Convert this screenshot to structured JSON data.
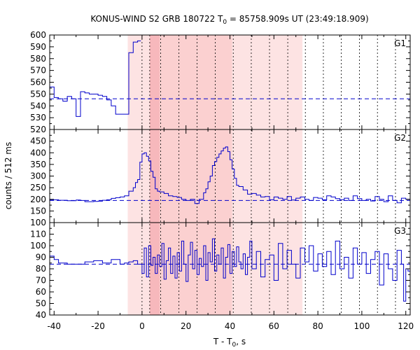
{
  "chart_data": {
    "type": "line",
    "title": "KONUS-WIND S2 GRB 180722 T",
    "title_sub": "0",
    "title_rest": " = 85758.909s UT (23:49:18.909)",
    "xlabel": "T - T",
    "xlabel_sub": "0",
    "xlabel_rest": ", s",
    "ylabel": "counts / 512 ms",
    "xlim": [
      -42,
      122
    ],
    "x_ticks": [
      "-40",
      "-20",
      "0",
      "20",
      "40",
      "60",
      "80",
      "100",
      "120"
    ],
    "line_color": "#0000cc",
    "shade_colors": {
      "light": "#fde3e3",
      "medium": "#fbd0d0",
      "dark": "#f7b8bc"
    },
    "shaded_regions": [
      {
        "x0": -6.5,
        "x1": 3.5,
        "level": "light"
      },
      {
        "x0": 3.5,
        "x1": 8.0,
        "level": "dark"
      },
      {
        "x0": 8.0,
        "x1": 41.0,
        "level": "medium"
      },
      {
        "x0": 41.0,
        "x1": 73.0,
        "level": "light"
      }
    ],
    "vlines": [
      0,
      3.5,
      8.5,
      16.8,
      25.0,
      33.3,
      41.5,
      49.7,
      58.0,
      66.3,
      74.3,
      82.5,
      90.6,
      98.9,
      107.1,
      115.3
    ],
    "panels": [
      {
        "name": "G1",
        "ylim": [
          520,
          600
        ],
        "y_ticks": [
          "520",
          "530",
          "540",
          "550",
          "560",
          "570",
          "580",
          "590",
          "600"
        ],
        "background": 546,
        "points": [
          [
            -42,
            556
          ],
          [
            -40,
            547
          ],
          [
            -38,
            546
          ],
          [
            -36,
            544
          ],
          [
            -34,
            548
          ],
          [
            -32,
            546
          ],
          [
            -30,
            531
          ],
          [
            -28,
            552
          ],
          [
            -26,
            551
          ],
          [
            -24,
            550
          ],
          [
            -22,
            550
          ],
          [
            -20,
            549
          ],
          [
            -18,
            548
          ],
          [
            -16,
            545
          ],
          [
            -14,
            540
          ],
          [
            -12,
            533
          ],
          [
            -10,
            533
          ],
          [
            -8,
            533
          ],
          [
            -6,
            585
          ],
          [
            -4,
            594
          ],
          [
            -2,
            595
          ],
          [
            -0.5,
            595
          ]
        ]
      },
      {
        "name": "G2",
        "ylim": [
          100,
          500
        ],
        "y_ticks": [
          "100",
          "150",
          "200",
          "250",
          "300",
          "350",
          "400",
          "450",
          "500"
        ],
        "background": 195,
        "points": [
          [
            -42,
            198
          ],
          [
            -38,
            196
          ],
          [
            -34,
            194
          ],
          [
            -30,
            197
          ],
          [
            -28,
            195
          ],
          [
            -26,
            190
          ],
          [
            -22,
            191
          ],
          [
            -20,
            192
          ],
          [
            -18,
            196
          ],
          [
            -16,
            198
          ],
          [
            -14,
            204
          ],
          [
            -12,
            207
          ],
          [
            -10,
            210
          ],
          [
            -8,
            215
          ],
          [
            -6,
            235
          ],
          [
            -4,
            250
          ],
          [
            -3,
            272
          ],
          [
            -2,
            285
          ],
          [
            -1,
            360
          ],
          [
            0,
            395
          ],
          [
            1,
            400
          ],
          [
            2,
            385
          ],
          [
            3,
            365
          ],
          [
            4,
            320
          ],
          [
            5,
            295
          ],
          [
            6,
            245
          ],
          [
            7,
            235
          ],
          [
            8,
            232
          ],
          [
            10,
            225
          ],
          [
            12,
            215
          ],
          [
            14,
            212
          ],
          [
            16,
            208
          ],
          [
            18,
            200
          ],
          [
            20,
            195
          ],
          [
            22,
            200
          ],
          [
            24,
            182
          ],
          [
            26,
            200
          ],
          [
            28,
            228
          ],
          [
            29,
            245
          ],
          [
            30,
            275
          ],
          [
            31,
            300
          ],
          [
            32,
            345
          ],
          [
            33,
            362
          ],
          [
            34,
            380
          ],
          [
            35,
            395
          ],
          [
            36,
            408
          ],
          [
            37,
            420
          ],
          [
            38,
            425
          ],
          [
            39,
            405
          ],
          [
            40,
            370
          ],
          [
            41,
            330
          ],
          [
            42,
            290
          ],
          [
            43,
            260
          ],
          [
            44,
            255
          ],
          [
            46,
            240
          ],
          [
            48,
            222
          ],
          [
            50,
            225
          ],
          [
            52,
            218
          ],
          [
            54,
            210
          ],
          [
            56,
            212
          ],
          [
            58,
            198
          ],
          [
            60,
            210
          ],
          [
            62,
            205
          ],
          [
            64,
            200
          ],
          [
            66,
            212
          ],
          [
            68,
            197
          ],
          [
            70,
            205
          ],
          [
            72,
            210
          ],
          [
            74,
            200
          ],
          [
            76,
            195
          ],
          [
            78,
            208
          ],
          [
            80,
            205
          ],
          [
            82,
            198
          ],
          [
            84,
            215
          ],
          [
            86,
            210
          ],
          [
            88,
            203
          ],
          [
            90,
            198
          ],
          [
            92,
            205
          ],
          [
            94,
            195
          ],
          [
            96,
            215
          ],
          [
            98,
            203
          ],
          [
            100,
            195
          ],
          [
            102,
            200
          ],
          [
            104,
            193
          ],
          [
            106,
            212
          ],
          [
            108,
            200
          ],
          [
            110,
            190
          ],
          [
            112,
            215
          ],
          [
            114,
            195
          ],
          [
            116,
            185
          ],
          [
            118,
            205
          ],
          [
            120,
            200
          ],
          [
            122,
            198
          ]
        ]
      },
      {
        "name": "G3",
        "ylim": [
          40,
          120
        ],
        "y_ticks": [
          "40",
          "50",
          "60",
          "70",
          "80",
          "90",
          "100",
          "110",
          "120"
        ],
        "background": 84,
        "points": [
          [
            -42,
            91
          ],
          [
            -40,
            88
          ],
          [
            -38,
            85
          ],
          [
            -34,
            84
          ],
          [
            -30,
            84
          ],
          [
            -26,
            86
          ],
          [
            -22,
            87
          ],
          [
            -18,
            85
          ],
          [
            -14,
            88
          ],
          [
            -10,
            84
          ],
          [
            -8,
            85
          ],
          [
            -6,
            86
          ],
          [
            -4,
            87
          ],
          [
            -2,
            84
          ],
          [
            0,
            76
          ],
          [
            1,
            98
          ],
          [
            2,
            73
          ],
          [
            3,
            100
          ],
          [
            4,
            83
          ],
          [
            5,
            90
          ],
          [
            6,
            76
          ],
          [
            7,
            92
          ],
          [
            8,
            82
          ],
          [
            9,
            102
          ],
          [
            10,
            71
          ],
          [
            11,
            87
          ],
          [
            12,
            98
          ],
          [
            13,
            76
          ],
          [
            14,
            91
          ],
          [
            15,
            72
          ],
          [
            16,
            94
          ],
          [
            17,
            78
          ],
          [
            18,
            104
          ],
          [
            19,
            84
          ],
          [
            20,
            69
          ],
          [
            21,
            92
          ],
          [
            22,
            103
          ],
          [
            23,
            80
          ],
          [
            24,
            96
          ],
          [
            25,
            75
          ],
          [
            26,
            89
          ],
          [
            27,
            82
          ],
          [
            28,
            100
          ],
          [
            29,
            70
          ],
          [
            30,
            94
          ],
          [
            31,
            86
          ],
          [
            32,
            106
          ],
          [
            33,
            78
          ],
          [
            34,
            92
          ],
          [
            35,
            84
          ],
          [
            36,
            98
          ],
          [
            37,
            72
          ],
          [
            38,
            90
          ],
          [
            39,
            101
          ],
          [
            40,
            76
          ],
          [
            41,
            95
          ],
          [
            42,
            82
          ],
          [
            43,
            99
          ],
          [
            44,
            86
          ],
          [
            45,
            80
          ],
          [
            46,
            93
          ],
          [
            47,
            75
          ],
          [
            48,
            90
          ],
          [
            49,
            104
          ],
          [
            50,
            80
          ],
          [
            52,
            95
          ],
          [
            54,
            73
          ],
          [
            56,
            88
          ],
          [
            58,
            92
          ],
          [
            60,
            70
          ],
          [
            62,
            102
          ],
          [
            64,
            80
          ],
          [
            66,
            96
          ],
          [
            68,
            84
          ],
          [
            70,
            72
          ],
          [
            72,
            98
          ],
          [
            74,
            86
          ],
          [
            76,
            100
          ],
          [
            78,
            78
          ],
          [
            80,
            93
          ],
          [
            82,
            82
          ],
          [
            84,
            95
          ],
          [
            86,
            75
          ],
          [
            88,
            104
          ],
          [
            90,
            80
          ],
          [
            92,
            90
          ],
          [
            94,
            72
          ],
          [
            96,
            98
          ],
          [
            98,
            84
          ],
          [
            100,
            94
          ],
          [
            102,
            76
          ],
          [
            104,
            88
          ],
          [
            106,
            95
          ],
          [
            108,
            66
          ],
          [
            110,
            93
          ],
          [
            112,
            80
          ],
          [
            114,
            70
          ],
          [
            116,
            96
          ],
          [
            118,
            84
          ],
          [
            119,
            52
          ],
          [
            120,
            80
          ],
          [
            121,
            78
          ],
          [
            122,
            86
          ]
        ]
      }
    ]
  }
}
